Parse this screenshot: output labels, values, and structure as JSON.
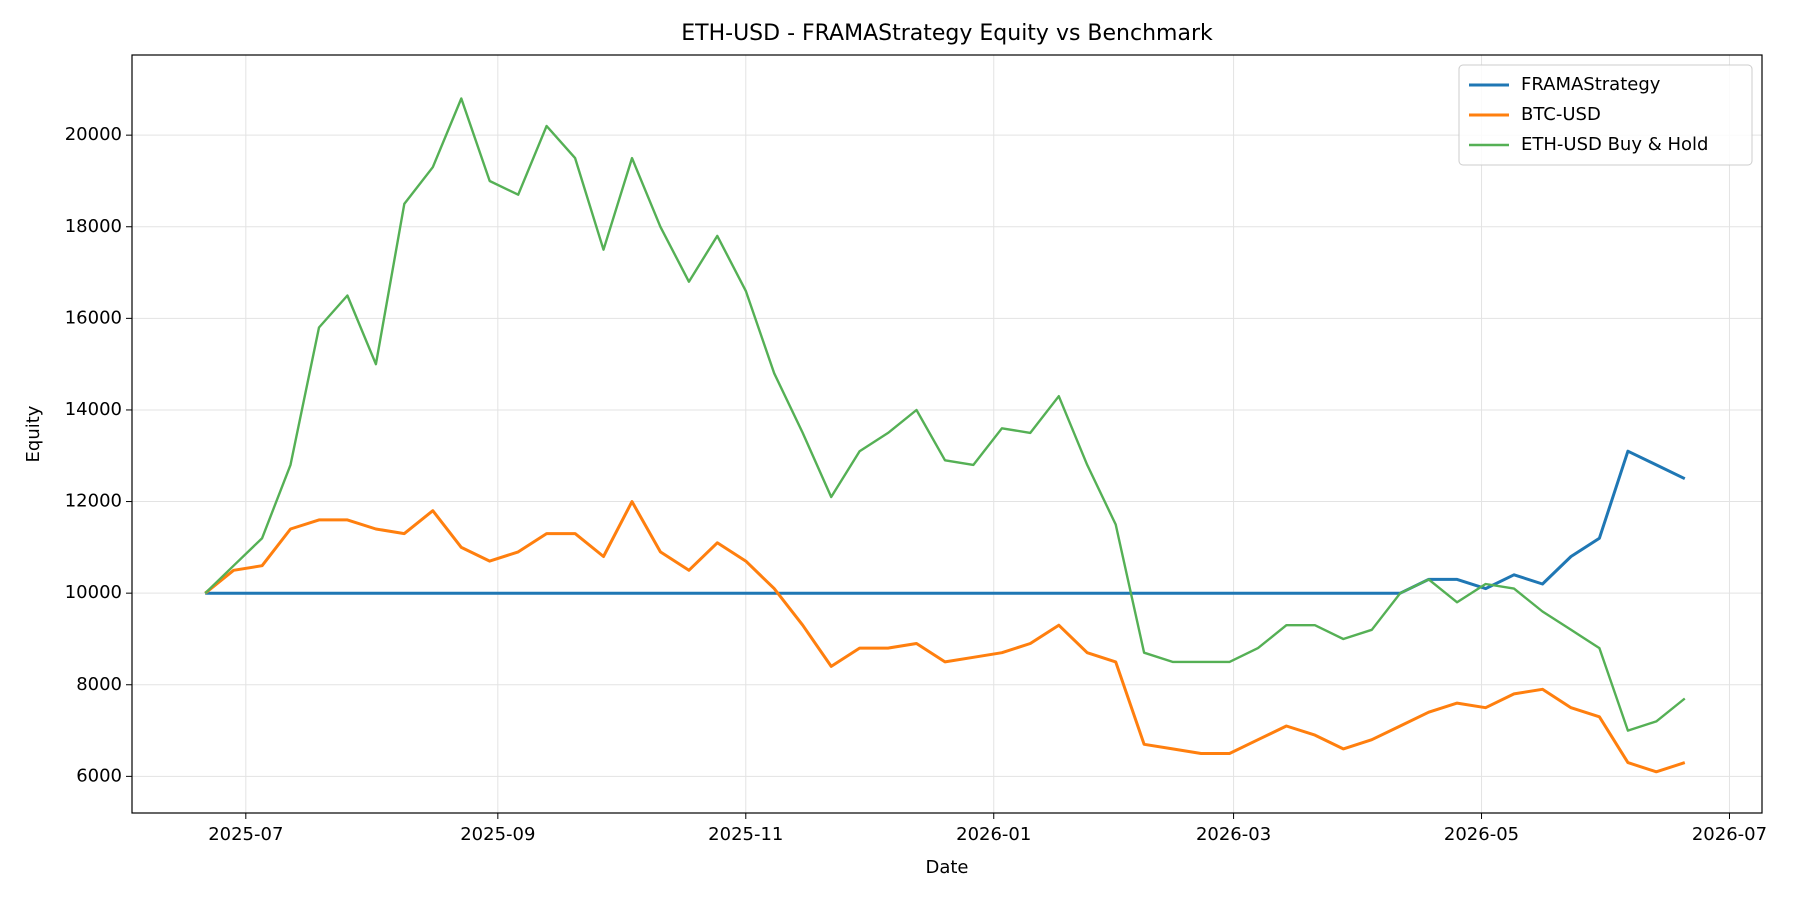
{
  "chart_data": {
    "type": "line",
    "title": "ETH-USD - FRAMAStrategy Equity vs Benchmark",
    "xlabel": "Date",
    "ylabel": "Equity",
    "x": [
      20,
      27,
      34,
      41,
      48,
      55,
      62,
      69,
      76,
      83,
      90,
      97,
      104,
      111,
      118,
      125,
      132,
      139,
      146,
      153,
      160,
      167,
      174,
      181,
      188,
      195,
      202,
      209,
      216,
      223,
      230,
      237,
      244,
      251,
      258,
      265,
      272,
      279,
      286,
      293,
      300,
      307,
      314,
      321,
      328,
      335,
      342,
      349,
      356,
      363,
      370,
      377,
      384
    ],
    "series": [
      {
        "name": "FRAMAStrategy",
        "color": "#1f77b4",
        "values": [
          10000,
          10000,
          10000,
          10000,
          10000,
          10000,
          10000,
          10000,
          10000,
          10000,
          10000,
          10000,
          10000,
          10000,
          10000,
          10000,
          10000,
          10000,
          10000,
          10000,
          10000,
          10000,
          10000,
          10000,
          10000,
          10000,
          10000,
          10000,
          10000,
          10000,
          10000,
          10000,
          10000,
          10000,
          10000,
          10000,
          10000,
          10000,
          10000,
          10000,
          10000,
          10000,
          10000,
          10300,
          10300,
          10100,
          10400,
          10200,
          10800,
          11200,
          13100,
          12800,
          12500
        ]
      },
      {
        "name": "BTC-USD",
        "color": "#ff7f0e",
        "values": [
          10000,
          10500,
          10600,
          11400,
          11600,
          11600,
          11400,
          11300,
          11800,
          11000,
          10700,
          10900,
          11300,
          11300,
          10800,
          12000,
          10900,
          10500,
          11100,
          10700,
          10100,
          9300,
          8400,
          8800,
          8800,
          8900,
          8500,
          8600,
          8700,
          8900,
          9300,
          8700,
          8500,
          6700,
          6600,
          6500,
          6500,
          6800,
          7100,
          6900,
          6600,
          6800,
          7100,
          7400,
          7600,
          7500,
          7800,
          7900,
          7500,
          7300,
          6300,
          6100,
          6300
        ]
      },
      {
        "name": "ETH-USD Buy & Hold",
        "color": "#55b055",
        "values": [
          10000,
          10600,
          11200,
          12800,
          15800,
          16500,
          15000,
          18500,
          19300,
          20800,
          19000,
          18700,
          20200,
          19500,
          17500,
          19500,
          18000,
          16800,
          17800,
          16600,
          14800,
          13500,
          12100,
          13100,
          13500,
          14000,
          12900,
          12800,
          13600,
          13500,
          14300,
          12800,
          11500,
          8700,
          8500,
          8500,
          8500,
          8800,
          9300,
          9300,
          9000,
          9200,
          10000,
          10300,
          9800,
          10200,
          10100,
          9600,
          9200,
          8800,
          7000,
          7200,
          7700
        ]
      }
    ],
    "xlim": [
      2,
      403
    ],
    "xticks": [
      {
        "value": 30,
        "label": "2025-07"
      },
      {
        "value": 92,
        "label": "2025-09"
      },
      {
        "value": 153,
        "label": "2025-11"
      },
      {
        "value": 214,
        "label": "2026-01"
      },
      {
        "value": 273,
        "label": "2026-03"
      },
      {
        "value": 334,
        "label": "2026-05"
      },
      {
        "value": 395,
        "label": "2026-07"
      }
    ],
    "ylim": [
      5200,
      21750
    ],
    "yticks": [
      6000,
      8000,
      10000,
      12000,
      14000,
      16000,
      18000,
      20000
    ],
    "grid": true,
    "legend": "upper right"
  }
}
